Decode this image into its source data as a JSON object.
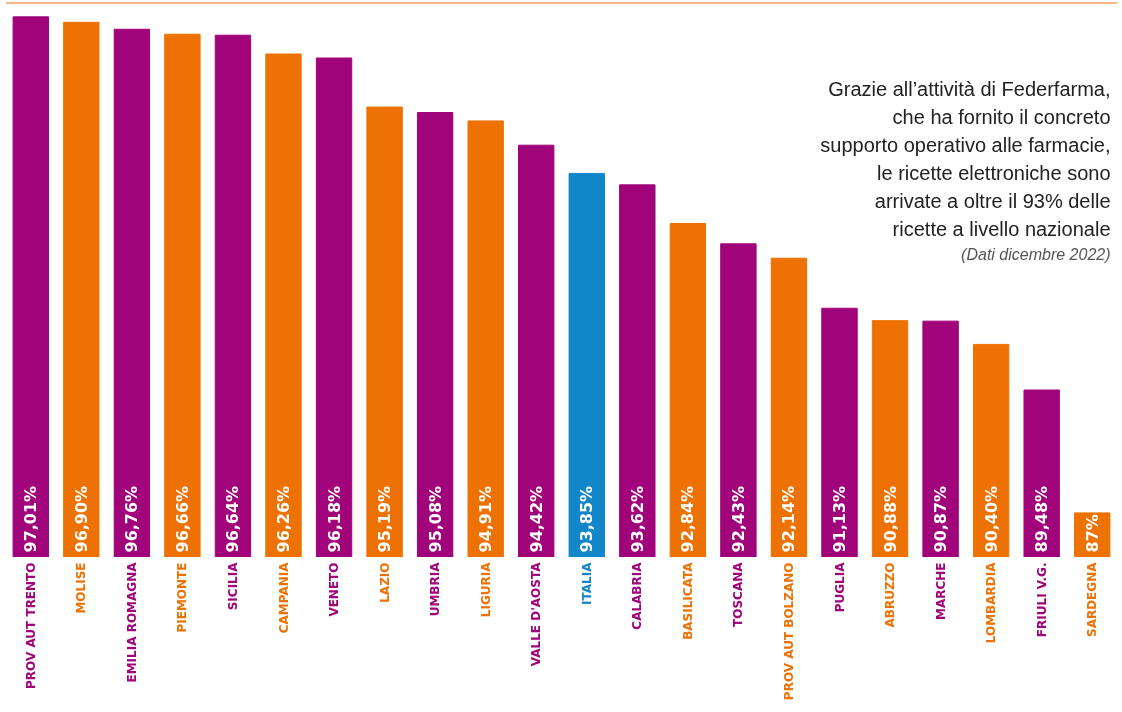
{
  "chart_data": {
    "type": "bar",
    "categories": [
      "PROV AUT TRENTO",
      "MOLISE",
      "EMILIA ROMAGNA",
      "PIEMONTE",
      "SICILIA",
      "CAMPANIA",
      "VENETO",
      "LAZIO",
      "UMBRIA",
      "LIGURIA",
      "VALLE D'AOSTA",
      "ITALIA",
      "CALABRIA",
      "BASILICATA",
      "TOSCANA",
      "PROV AUT BOLZANO",
      "PUGLIA",
      "ABRUZZO",
      "MARCHE",
      "LOMBARDIA",
      "FRIULI V.G.",
      "SARDEGNA"
    ],
    "values": [
      97.01,
      96.9,
      96.76,
      96.66,
      96.64,
      96.26,
      96.18,
      95.19,
      95.08,
      94.91,
      94.42,
      93.85,
      93.62,
      92.84,
      92.43,
      92.14,
      91.13,
      90.88,
      90.87,
      90.4,
      89.48,
      87
    ],
    "value_labels": [
      "97,01%",
      "96,90%",
      "96,76%",
      "96,66%",
      "96,64%",
      "96,26%",
      "96,18%",
      "95,19%",
      "95,08%",
      "94,91%",
      "94,42%",
      "93,85%",
      "93,62%",
      "92,84%",
      "92,43%",
      "92,14%",
      "91,13%",
      "90,88%",
      "90,87%",
      "90,40%",
      "89,48%",
      "87%"
    ],
    "colors": [
      "#a0037a",
      "#ee7203",
      "#a0037a",
      "#ee7203",
      "#a0037a",
      "#ee7203",
      "#a0037a",
      "#ee7203",
      "#a0037a",
      "#ee7203",
      "#a0037a",
      "#1187c9",
      "#a0037a",
      "#ee7203",
      "#a0037a",
      "#ee7203",
      "#a0037a",
      "#ee7203",
      "#a0037a",
      "#ee7203",
      "#a0037a",
      "#ee7203"
    ],
    "ylim": [
      86.1,
      97.3
    ],
    "tick_labels": false,
    "grid": false,
    "annotations": [
      "Grazie all’attività di Federfarma, che ha fornito il concreto supporto operativo alle farmacie, le ricette elettroniche sono arrivate a oltre il 93% delle ricette a livello nazionale",
      "(Dati dicembre 2022)"
    ]
  }
}
